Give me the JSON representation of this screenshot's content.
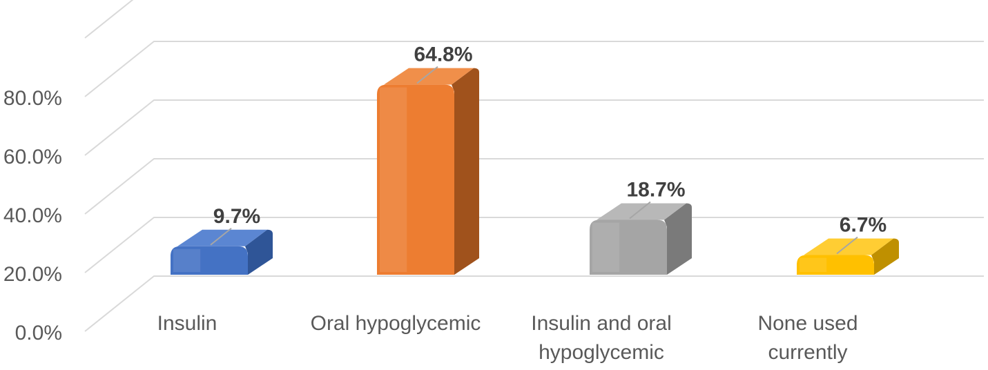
{
  "chart_data": {
    "type": "bar",
    "style": "3d-column",
    "title": "",
    "xlabel": "",
    "ylabel": "",
    "categories": [
      [
        "Insulin"
      ],
      [
        "Oral hypoglycemic"
      ],
      [
        "Insulin and oral",
        "hypoglycemic"
      ],
      [
        "None used",
        "currently"
      ]
    ],
    "values": [
      9.7,
      64.8,
      18.7,
      6.7
    ],
    "data_labels": [
      "9.7%",
      "64.8%",
      "18.7%",
      "6.7%"
    ],
    "ylim": [
      0,
      80
    ],
    "yticks": [
      0,
      20,
      40,
      60,
      80
    ],
    "ytick_labels": [
      "0.0%",
      "20.0%",
      "40.0%",
      "60.0%",
      "80.0%"
    ],
    "grid": true,
    "legend": "none",
    "colors": {
      "bars": [
        {
          "front": "#4472c4",
          "side": "#2f5597",
          "top": "#5b86d2"
        },
        {
          "front": "#ed7d31",
          "side": "#a0521c",
          "top": "#f08f4a"
        },
        {
          "front": "#a5a5a5",
          "side": "#7a7a7a",
          "top": "#b8b8b8"
        },
        {
          "front": "#ffc000",
          "side": "#bf9000",
          "top": "#ffcd33"
        }
      ],
      "grid": "#d9d9d9",
      "text": "#595959",
      "label_text": "#404040"
    }
  }
}
